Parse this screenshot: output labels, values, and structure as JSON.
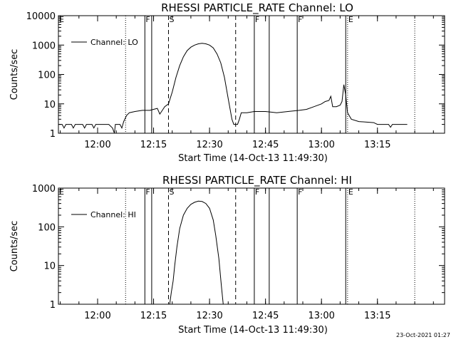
{
  "footer": {
    "timestamp": "23-Oct-2021 01:27"
  },
  "chart_data": [
    {
      "type": "line",
      "title": "RHESSI PARTICLE_RATE Channel: LO",
      "xlabel": "Start Time (14-Oct-13 11:49:30)",
      "ylabel": "Counts/sec",
      "y_scale": "log",
      "xlim": [
        "11:49:30",
        "13:33:00"
      ],
      "ylim": [
        1,
        10000
      ],
      "x_ticks": [
        "12:00",
        "12:15",
        "12:30",
        "12:45",
        "13:00",
        "13:15"
      ],
      "y_ticks": [
        "1",
        "10",
        "100",
        "1000",
        "10000"
      ],
      "legend": {
        "placement": "top-left",
        "entries": [
          "Channel: LO"
        ]
      },
      "markers": [
        {
          "time": "11:49:30",
          "label": "E",
          "style": "dotted"
        },
        {
          "time": "12:07:30",
          "label": "",
          "style": "dotted"
        },
        {
          "time": "12:12:40",
          "label": "F",
          "style": "solid"
        },
        {
          "time": "12:14:30",
          "label": "",
          "style": "solid"
        },
        {
          "time": "12:19:00",
          "label": "S",
          "style": "dashed"
        },
        {
          "time": "12:37:00",
          "label": "",
          "style": "dashed"
        },
        {
          "time": "12:42:00",
          "label": "F",
          "style": "solid"
        },
        {
          "time": "12:46:00",
          "label": "",
          "style": "solid"
        },
        {
          "time": "12:53:30",
          "label": "F",
          "style": "solid"
        },
        {
          "time": "13:06:30",
          "label": "",
          "style": "solid"
        },
        {
          "time": "13:07:00",
          "label": "E",
          "style": "dotted"
        },
        {
          "time": "13:25:00",
          "label": "",
          "style": "dotted"
        }
      ],
      "series": [
        {
          "points": [
            [
              "11:49:30",
              2
            ],
            [
              "11:50:30",
              2
            ],
            [
              "11:51:00",
              1.5
            ],
            [
              "11:51:30",
              2
            ],
            [
              "11:53:00",
              2
            ],
            [
              "11:53:30",
              1.5
            ],
            [
              "11:54:00",
              2
            ],
            [
              "11:56:00",
              2
            ],
            [
              "11:56:30",
              1.5
            ],
            [
              "11:57:00",
              2
            ],
            [
              "11:58:30",
              2
            ],
            [
              "11:59:00",
              1.5
            ],
            [
              "11:59:30",
              2
            ],
            [
              "12:03:00",
              2
            ],
            [
              "12:04:00",
              1.5
            ],
            [
              "12:04:30",
              1
            ],
            [
              "12:04:45",
              2
            ],
            [
              "12:06:00",
              2
            ],
            [
              "12:06:30",
              1.5
            ],
            [
              "12:07:00",
              2.5
            ],
            [
              "12:07:45",
              4
            ],
            [
              "12:08:30",
              5
            ],
            [
              "12:10:00",
              5.5
            ],
            [
              "12:12:00",
              6
            ],
            [
              "12:14:00",
              6
            ],
            [
              "12:15:00",
              6.5
            ],
            [
              "12:16:00",
              7
            ],
            [
              "12:16:40",
              4.5
            ],
            [
              "12:17:20",
              6
            ],
            [
              "12:18:00",
              8
            ],
            [
              "12:19:00",
              10
            ],
            [
              "12:20:00",
              25
            ],
            [
              "12:21:00",
              80
            ],
            [
              "12:22:00",
              200
            ],
            [
              "12:23:00",
              400
            ],
            [
              "12:24:00",
              650
            ],
            [
              "12:25:00",
              850
            ],
            [
              "12:26:00",
              1000
            ],
            [
              "12:27:00",
              1100
            ],
            [
              "12:28:00",
              1150
            ],
            [
              "12:29:00",
              1100
            ],
            [
              "12:30:00",
              1000
            ],
            [
              "12:31:00",
              800
            ],
            [
              "12:32:00",
              500
            ],
            [
              "12:33:00",
              250
            ],
            [
              "12:34:00",
              80
            ],
            [
              "12:35:00",
              15
            ],
            [
              "12:36:00",
              3
            ],
            [
              "12:36:30",
              2
            ],
            [
              "12:37:30",
              2
            ],
            [
              "12:38:00",
              3
            ],
            [
              "12:38:30",
              5
            ],
            [
              "12:40:00",
              5
            ],
            [
              "12:42:00",
              5.5
            ],
            [
              "12:45:00",
              5.5
            ],
            [
              "12:48:00",
              5
            ],
            [
              "12:51:00",
              5.5
            ],
            [
              "12:54:00",
              6
            ],
            [
              "12:56:00",
              6.5
            ],
            [
              "12:58:00",
              8
            ],
            [
              "13:00:00",
              10
            ],
            [
              "13:01:00",
              12
            ],
            [
              "13:02:00",
              13
            ],
            [
              "13:02:30",
              18
            ],
            [
              "13:03:00",
              8
            ],
            [
              "13:04:00",
              8
            ],
            [
              "13:05:00",
              9
            ],
            [
              "13:05:30",
              12
            ],
            [
              "13:06:00",
              45
            ],
            [
              "13:06:30",
              20
            ],
            [
              "13:07:00",
              5
            ],
            [
              "13:08:00",
              3
            ],
            [
              "13:10:00",
              2.5
            ],
            [
              "13:14:00",
              2.3
            ],
            [
              "13:15:00",
              2
            ],
            [
              "13:18:00",
              2
            ],
            [
              "13:18:30",
              1.6
            ],
            [
              "13:19:00",
              2
            ],
            [
              "13:22:00",
              2
            ],
            [
              "13:23:00",
              2
            ]
          ]
        }
      ]
    },
    {
      "type": "line",
      "title": "RHESSI PARTICLE_RATE Channel: HI",
      "xlabel": "Start Time (14-Oct-13 11:49:30)",
      "ylabel": "Counts/sec",
      "y_scale": "log",
      "xlim": [
        "11:49:30",
        "13:33:00"
      ],
      "ylim": [
        1,
        1000
      ],
      "x_ticks": [
        "12:00",
        "12:15",
        "12:30",
        "12:45",
        "13:00",
        "13:15"
      ],
      "y_ticks": [
        "1",
        "10",
        "100",
        "1000"
      ],
      "legend": {
        "placement": "top-left",
        "entries": [
          "Channel: HI"
        ]
      },
      "markers": [
        {
          "time": "11:49:30",
          "label": "E",
          "style": "dotted"
        },
        {
          "time": "12:07:30",
          "label": "",
          "style": "dotted"
        },
        {
          "time": "12:12:40",
          "label": "F",
          "style": "solid"
        },
        {
          "time": "12:14:30",
          "label": "",
          "style": "solid"
        },
        {
          "time": "12:19:00",
          "label": "S",
          "style": "dashed"
        },
        {
          "time": "12:37:00",
          "label": "",
          "style": "dashed"
        },
        {
          "time": "12:42:00",
          "label": "F",
          "style": "solid"
        },
        {
          "time": "12:46:00",
          "label": "",
          "style": "solid"
        },
        {
          "time": "12:53:30",
          "label": "F",
          "style": "solid"
        },
        {
          "time": "13:06:30",
          "label": "",
          "style": "solid"
        },
        {
          "time": "13:07:00",
          "label": "E",
          "style": "dotted"
        },
        {
          "time": "13:25:00",
          "label": "",
          "style": "dotted"
        }
      ],
      "series": [
        {
          "points": [
            [
              "12:19:20",
              1
            ],
            [
              "12:19:45",
              2
            ],
            [
              "12:20:15",
              4
            ],
            [
              "12:20:40",
              10
            ],
            [
              "12:21:15",
              30
            ],
            [
              "12:22:00",
              90
            ],
            [
              "12:23:00",
              200
            ],
            [
              "12:24:00",
              300
            ],
            [
              "12:25:00",
              380
            ],
            [
              "12:26:00",
              430
            ],
            [
              "12:27:00",
              460
            ],
            [
              "12:28:00",
              450
            ],
            [
              "12:29:00",
              400
            ],
            [
              "12:30:00",
              300
            ],
            [
              "12:31:00",
              150
            ],
            [
              "12:31:40",
              60
            ],
            [
              "12:32:30",
              15
            ],
            [
              "12:33:10",
              3
            ],
            [
              "12:33:40",
              1
            ]
          ]
        }
      ]
    }
  ]
}
